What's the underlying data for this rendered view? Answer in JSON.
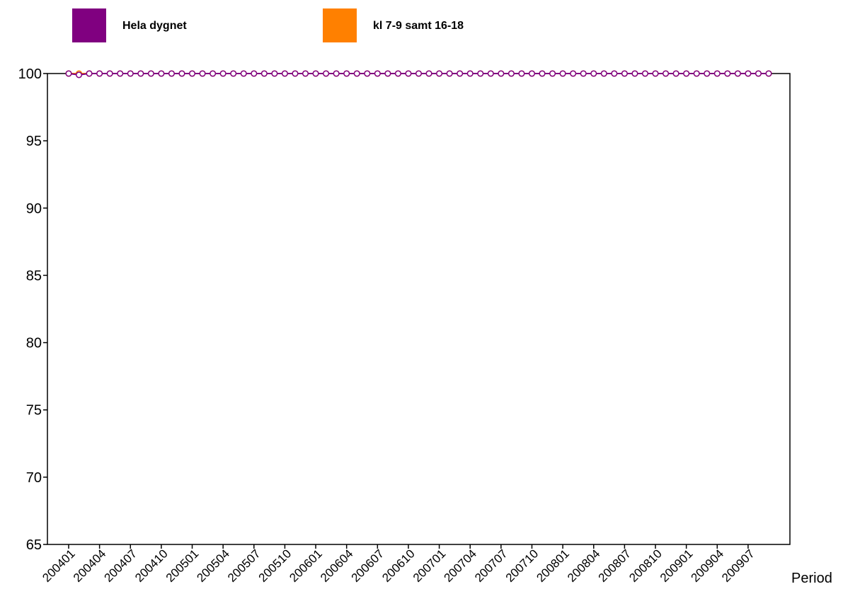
{
  "chart_data": {
    "type": "line",
    "title": "",
    "xlabel": "Period",
    "ylabel": "",
    "ylim": [
      65,
      100
    ],
    "yticks": [
      65,
      70,
      75,
      80,
      85,
      90,
      95,
      100
    ],
    "legend_position": "top",
    "grid": false,
    "categories": [
      "200401",
      "200402",
      "200403",
      "200404",
      "200405",
      "200406",
      "200407",
      "200408",
      "200409",
      "200410",
      "200411",
      "200412",
      "200501",
      "200502",
      "200503",
      "200504",
      "200505",
      "200506",
      "200507",
      "200508",
      "200509",
      "200510",
      "200511",
      "200512",
      "200601",
      "200602",
      "200603",
      "200604",
      "200605",
      "200606",
      "200607",
      "200608",
      "200609",
      "200610",
      "200611",
      "200612",
      "200701",
      "200702",
      "200703",
      "200704",
      "200705",
      "200706",
      "200707",
      "200708",
      "200709",
      "200710",
      "200711",
      "200712",
      "200801",
      "200802",
      "200803",
      "200804",
      "200805",
      "200806",
      "200807",
      "200808",
      "200809",
      "200810",
      "200811",
      "200812",
      "200901",
      "200902",
      "200903",
      "200904",
      "200905",
      "200906",
      "200907",
      "200908",
      "200909"
    ],
    "xtick_labels": [
      "200401",
      "200404",
      "200407",
      "200410",
      "200501",
      "200504",
      "200507",
      "200510",
      "200601",
      "200604",
      "200607",
      "200610",
      "200701",
      "200704",
      "200707",
      "200710",
      "200801",
      "200804",
      "200807",
      "200810",
      "200901",
      "200904",
      "200907"
    ],
    "series": [
      {
        "name": "Hela dygnet",
        "color": "#800080",
        "values": [
          100,
          99.9,
          100,
          100,
          100,
          100,
          100,
          100,
          100,
          100,
          100,
          100,
          100,
          100,
          100,
          100,
          100,
          100,
          100,
          100,
          100,
          100,
          100,
          100,
          100,
          100,
          100,
          100,
          100,
          100,
          100,
          100,
          100,
          100,
          100,
          100,
          100,
          100,
          100,
          100,
          100,
          100,
          100,
          100,
          100,
          100,
          100,
          100,
          100,
          100,
          100,
          100,
          100,
          100,
          100,
          100,
          100,
          100,
          100,
          100,
          100,
          100,
          100,
          100,
          100,
          100,
          100,
          100,
          100
        ]
      },
      {
        "name": "kl 7-9 samt 16-18",
        "color": "#ff8000",
        "values": [
          100,
          100,
          100,
          100,
          100,
          100,
          100,
          100,
          100,
          100,
          100,
          100,
          100,
          100,
          100,
          100,
          100,
          100,
          100,
          100,
          100,
          100,
          100,
          100,
          100,
          100,
          100,
          100,
          100,
          100,
          100,
          100,
          100,
          100,
          100,
          100,
          100,
          100,
          100,
          100,
          100,
          100,
          100,
          100,
          100,
          100,
          100,
          100,
          100,
          100,
          100,
          100,
          100,
          100,
          100,
          100,
          100,
          100,
          100,
          100,
          100,
          100,
          100,
          100,
          100,
          100,
          100,
          100,
          100
        ]
      }
    ]
  }
}
